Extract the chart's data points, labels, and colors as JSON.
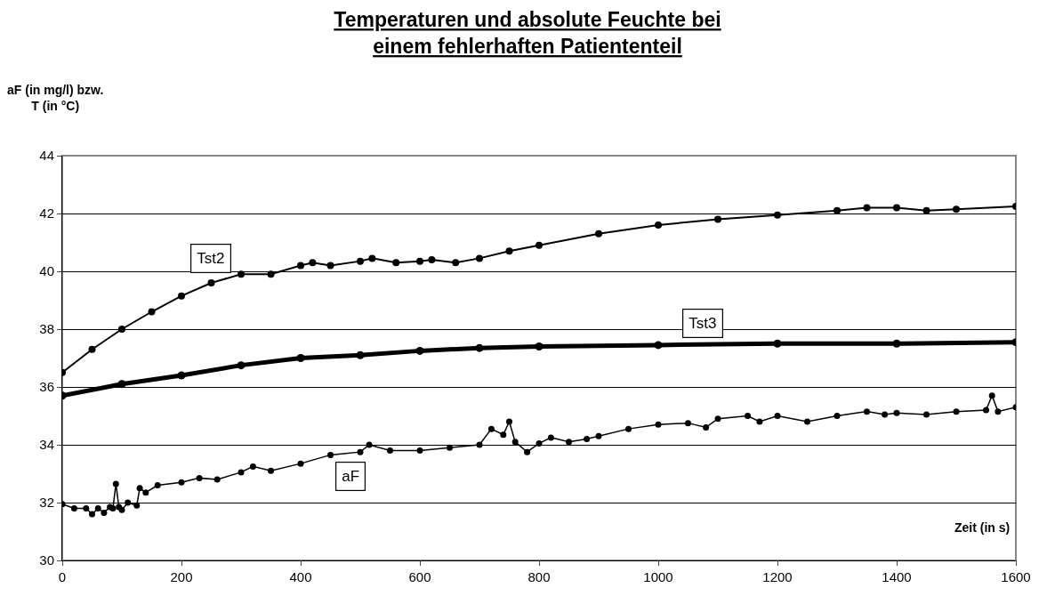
{
  "chart_data": {
    "type": "line",
    "title": "Temperaturen und absolute Feuchte bei einem fehlerhaften Patiententeil",
    "xlabel": "Zeit (in s)",
    "ylabel": "aF (in mg/l) bzw. T (in °C)",
    "xlim": [
      0,
      1600
    ],
    "xticks": [
      0,
      200,
      400,
      600,
      800,
      1000,
      1200,
      1400,
      1600
    ],
    "ylim": [
      30,
      44
    ],
    "yticks": [
      30,
      32,
      34,
      36,
      38,
      40,
      42,
      44
    ],
    "grid": "y",
    "legend": false,
    "marker": "circle",
    "line_style": "solid",
    "series": [
      {
        "name": "Tst2",
        "color": "#000000",
        "x": [
          0,
          50,
          100,
          150,
          200,
          250,
          300,
          350,
          400,
          420,
          450,
          500,
          520,
          560,
          600,
          620,
          660,
          700,
          750,
          800,
          900,
          1000,
          1100,
          1200,
          1300,
          1350,
          1400,
          1450,
          1500,
          1600
        ],
        "values": [
          36.5,
          37.3,
          38.0,
          38.6,
          39.15,
          39.6,
          39.9,
          39.9,
          40.2,
          40.3,
          40.2,
          40.35,
          40.45,
          40.3,
          40.35,
          40.4,
          40.3,
          40.45,
          40.7,
          40.9,
          41.3,
          41.6,
          41.8,
          41.95,
          42.1,
          42.2,
          42.2,
          42.1,
          42.15,
          42.25
        ]
      },
      {
        "name": "Tst3",
        "color": "#000000",
        "x": [
          0,
          100,
          200,
          300,
          400,
          500,
          600,
          700,
          800,
          1000,
          1200,
          1400,
          1600
        ],
        "values": [
          35.7,
          36.1,
          36.4,
          36.75,
          37.0,
          37.1,
          37.25,
          37.35,
          37.4,
          37.45,
          37.5,
          37.5,
          37.55
        ]
      },
      {
        "name": "aF",
        "color": "#000000",
        "x": [
          0,
          20,
          40,
          50,
          60,
          70,
          80,
          85,
          90,
          95,
          100,
          110,
          125,
          130,
          140,
          160,
          200,
          230,
          260,
          300,
          320,
          350,
          400,
          450,
          500,
          515,
          550,
          600,
          650,
          700,
          720,
          740,
          750,
          760,
          780,
          800,
          820,
          850,
          880,
          900,
          950,
          1000,
          1050,
          1080,
          1100,
          1150,
          1170,
          1200,
          1250,
          1300,
          1350,
          1380,
          1400,
          1450,
          1500,
          1550,
          1560,
          1570,
          1600
        ],
        "values": [
          31.95,
          31.8,
          31.8,
          31.6,
          31.8,
          31.65,
          31.85,
          31.8,
          32.65,
          31.85,
          31.75,
          32.0,
          31.9,
          32.5,
          32.35,
          32.6,
          32.7,
          32.85,
          32.8,
          33.05,
          33.25,
          33.1,
          33.35,
          33.65,
          33.75,
          34.0,
          33.8,
          33.8,
          33.9,
          34.0,
          34.55,
          34.35,
          34.8,
          34.1,
          33.75,
          34.05,
          34.25,
          34.1,
          34.2,
          34.3,
          34.55,
          34.7,
          34.75,
          34.6,
          34.9,
          35.0,
          34.8,
          35.0,
          34.8,
          35.0,
          35.15,
          35.05,
          35.1,
          35.05,
          35.15,
          35.2,
          35.7,
          35.15,
          35.3
        ]
      }
    ]
  }
}
